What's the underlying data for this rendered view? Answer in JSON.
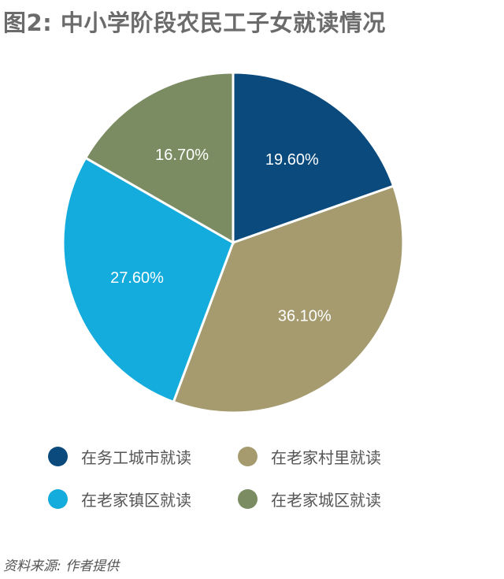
{
  "title": "图2: 中小学阶段农民工子女就读情况",
  "source": "资料来源: 作者提供",
  "chart_data": {
    "type": "pie",
    "title": "图2: 中小学阶段农民工子女就读情况",
    "legend_placement": "bottom",
    "slices": [
      {
        "name": "在务工城市就读",
        "value": 19.6,
        "label": "19.60%",
        "color": "#0a4a7d"
      },
      {
        "name": "在老家村里就读",
        "value": 36.1,
        "label": "36.10%",
        "color": "#a59b6f"
      },
      {
        "name": "在老家镇区就读",
        "value": 27.6,
        "label": "27.60%",
        "color": "#14acdc"
      },
      {
        "name": "在老家城区就读",
        "value": 16.7,
        "label": "16.70%",
        "color": "#7b8c63"
      }
    ]
  }
}
